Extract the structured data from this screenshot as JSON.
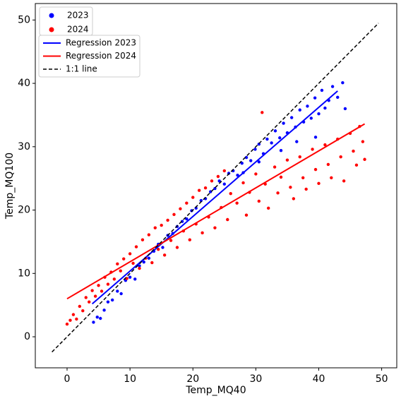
{
  "chart_data": {
    "type": "scatter",
    "xlabel": "Temp_MQ40",
    "ylabel": "Temp_MQ100",
    "xlim": [
      -5.05,
      52.4
    ],
    "ylim": [
      -4.9,
      52.6
    ],
    "xticks": [
      0,
      10,
      20,
      30,
      40,
      50
    ],
    "yticks": [
      0,
      10,
      20,
      30,
      40,
      50
    ],
    "series": [
      {
        "name": "2023",
        "color": "#0000ff",
        "x": [
          4.2,
          4.8,
          5.3,
          5.9,
          6.5,
          7.2,
          8,
          8.6,
          9.3,
          10,
          10.8,
          11.5,
          12.2,
          13,
          13.8,
          14.5,
          15.2,
          16,
          16.8,
          17.5,
          18.3,
          19,
          19.8,
          20.5,
          21.3,
          22,
          22.8,
          23.5,
          24.2,
          25,
          25.7,
          26.4,
          27.1,
          27.8,
          28.5,
          29.2,
          29.9,
          30.5,
          31.2,
          31.8,
          32.5,
          33.1,
          33.8,
          34.4,
          35,
          35.7,
          36.3,
          37,
          37.6,
          38.2,
          38.8,
          39.4,
          40,
          40.5,
          41,
          41.6,
          42.2,
          43,
          43.8,
          39.5,
          36.5,
          34,
          30.5,
          28,
          44.2
        ],
        "values": [
          2.3,
          3.1,
          2.9,
          4.2,
          5.5,
          5.8,
          7.2,
          6.8,
          8.9,
          9.4,
          9.1,
          11.2,
          11.8,
          12.4,
          13.5,
          14.6,
          14.1,
          16,
          16.3,
          17.4,
          18.2,
          18.6,
          19.9,
          20.3,
          21.5,
          21.8,
          22.9,
          23.4,
          24.6,
          24.1,
          25.8,
          26.2,
          25.5,
          27.4,
          28.3,
          27.8,
          29.6,
          30.4,
          28.9,
          31.2,
          30.6,
          32.5,
          31.4,
          33.7,
          32.2,
          34.6,
          33.1,
          35.8,
          33.9,
          36.4,
          34.5,
          37.7,
          35.2,
          38.9,
          36.1,
          37.3,
          39.5,
          37.8,
          40.1,
          31.5,
          30.8,
          29.4,
          27.6,
          25.9,
          36
        ]
      },
      {
        "name": "2024",
        "color": "#ff0000",
        "x": [
          0,
          0.5,
          1,
          1.5,
          2,
          2.5,
          3,
          3.5,
          4,
          4.5,
          5,
          5.5,
          6,
          6.5,
          7,
          7.5,
          8,
          8.5,
          9,
          9.5,
          10,
          10.5,
          11,
          11.5,
          12,
          12.5,
          13,
          13.5,
          14,
          14.5,
          15,
          15.5,
          16,
          16.5,
          17,
          17.5,
          18,
          18.5,
          19,
          19.5,
          20,
          20.5,
          21,
          21.5,
          22,
          22.5,
          23,
          23.5,
          24,
          24.5,
          25,
          25.5,
          26,
          27,
          28,
          28.5,
          29,
          30,
          30.5,
          31,
          31.5,
          32,
          33,
          33.5,
          34,
          35,
          35.5,
          36,
          37,
          37.5,
          38,
          39,
          39.5,
          40,
          41,
          41.5,
          42,
          43,
          43.5,
          44,
          45,
          45.5,
          46,
          46.5,
          47,
          47.3
        ],
        "values": [
          2,
          2.6,
          3.5,
          2.8,
          4.8,
          4.1,
          6.2,
          5.5,
          7.3,
          6.4,
          8.1,
          7.2,
          9.4,
          8.3,
          10.2,
          9.1,
          11.5,
          10.4,
          12.3,
          9.2,
          13.1,
          11.6,
          14.2,
          10.8,
          15.3,
          12.4,
          16.1,
          11.7,
          17.2,
          13.8,
          17.6,
          12.9,
          18.4,
          15.2,
          19.3,
          14.1,
          20.2,
          16.7,
          21.1,
          15.3,
          22,
          17.8,
          23.1,
          16.4,
          23.5,
          18.9,
          24.6,
          17.2,
          25.3,
          20.4,
          26.2,
          18.5,
          22.6,
          21.1,
          24.3,
          19.2,
          22.8,
          25.7,
          21.4,
          35.4,
          24.1,
          20.3,
          26.8,
          22.7,
          25.2,
          27.9,
          23.6,
          21.8,
          28.4,
          25.1,
          23.3,
          29.6,
          26.4,
          24.2,
          30.3,
          27.2,
          25.1,
          31.2,
          28.4,
          24.6,
          32.1,
          29.3,
          27.1,
          33.2,
          30.8,
          28
        ]
      }
    ],
    "lines": [
      {
        "name": "Regression 2023",
        "color": "#0000ff",
        "dashed": false,
        "x": [
          4,
          43
        ],
        "values": [
          5.2,
          38.8
        ]
      },
      {
        "name": "Regression 2024",
        "color": "#ff0000",
        "dashed": false,
        "x": [
          0,
          47.3
        ],
        "values": [
          6,
          33.6
        ]
      },
      {
        "name": "1:1 line",
        "color": "#000000",
        "dashed": true,
        "x": [
          -2.4,
          49.5
        ],
        "values": [
          -2.4,
          49.5
        ]
      }
    ]
  }
}
